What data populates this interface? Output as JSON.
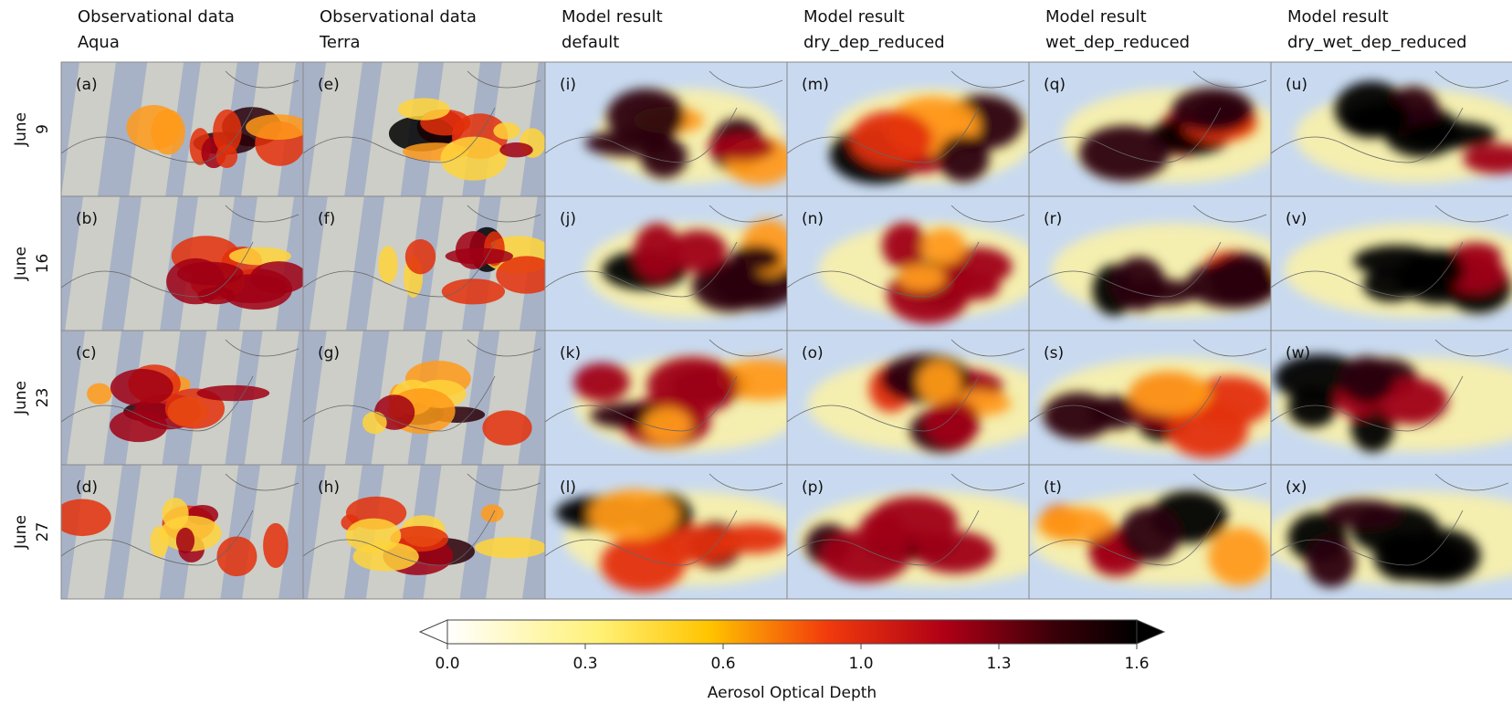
{
  "columns": [
    {
      "line1": "Observational data",
      "line2": "Aqua"
    },
    {
      "line1": "Observational data",
      "line2": "Terra"
    },
    {
      "line1": "Model result",
      "line2": "default"
    },
    {
      "line1": "Model result",
      "line2": "dry_dep_reduced"
    },
    {
      "line1": "Model result",
      "line2": "wet_dep_reduced"
    },
    {
      "line1": "Model result",
      "line2": "dry_wet_dep_reduced"
    }
  ],
  "rows": [
    {
      "month": "June",
      "day": "9"
    },
    {
      "month": "June",
      "day": "16"
    },
    {
      "month": "June",
      "day": "23"
    },
    {
      "month": "June",
      "day": "27"
    }
  ],
  "panels": [
    [
      "(a)",
      "(e)",
      "(i)",
      "(m)",
      "(q)",
      "(u)"
    ],
    [
      "(b)",
      "(f)",
      "(j)",
      "(n)",
      "(r)",
      "(v)"
    ],
    [
      "(c)",
      "(g)",
      "(k)",
      "(o)",
      "(s)",
      "(w)"
    ],
    [
      "(d)",
      "(h)",
      "(l)",
      "(p)",
      "(t)",
      "(x)"
    ]
  ],
  "colorbar": {
    "label": "Aerosol Optical Depth",
    "lim": [
      0,
      1.6
    ],
    "ticks": [
      {
        "value": 0,
        "label": "0.0"
      },
      0.3,
      0.6,
      {
        "value": 1,
        "label": "1.0"
      },
      1.3,
      1.6
    ]
  }
}
